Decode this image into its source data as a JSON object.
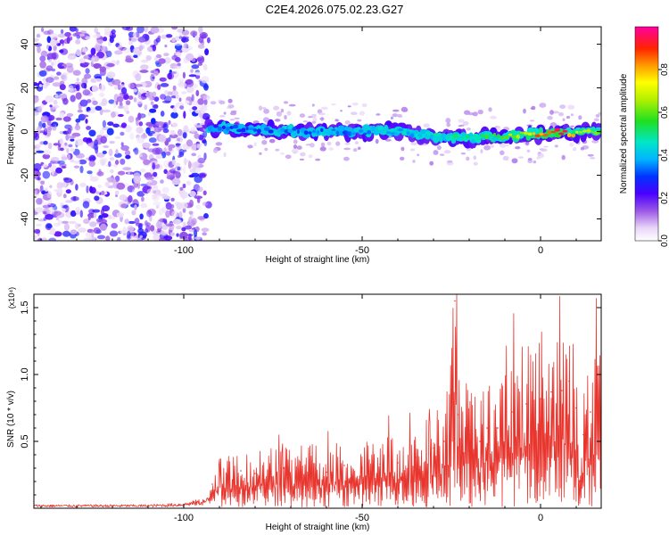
{
  "title": "C2E4.2026.075.02.23.G27",
  "chart_data": [
    {
      "type": "heatmap",
      "title": "C2E4.2026.075.02.23.G27",
      "xlabel": "Height of straight line (km)",
      "ylabel": "Frequency (Hz)",
      "xlim": [
        -142,
        17
      ],
      "ylim": [
        -50,
        48
      ],
      "xticks": [
        -100,
        -50,
        0
      ],
      "yticks": [
        -40,
        -20,
        0,
        20,
        40
      ],
      "colorbar": {
        "label": "Normalized spectral amplitude",
        "range": [
          0.0,
          1.0
        ],
        "ticks": [
          0.0,
          0.2,
          0.4,
          0.6,
          0.8
        ],
        "tick_labels": [
          "0.0",
          "0.2",
          "0.4",
          "0.6",
          "0.8"
        ]
      },
      "noise_region": {
        "x_range": [
          -142,
          -93
        ],
        "y_range": [
          -50,
          48
        ],
        "amplitude_range": [
          0.0,
          0.25
        ]
      },
      "signal_band": [
        {
          "x": -93,
          "freq": 2,
          "amplitude": 0.25
        },
        {
          "x": -80,
          "freq": 1,
          "amplitude": 0.3
        },
        {
          "x": -65,
          "freq": 0,
          "amplitude": 0.3
        },
        {
          "x": -50,
          "freq": 0,
          "amplitude": 0.35
        },
        {
          "x": -40,
          "freq": 0,
          "amplitude": 0.4
        },
        {
          "x": -30,
          "freq": -2,
          "amplitude": 0.4
        },
        {
          "x": -20,
          "freq": -3,
          "amplitude": 0.45
        },
        {
          "x": -10,
          "freq": -2,
          "amplitude": 0.55
        },
        {
          "x": 0,
          "freq": -1,
          "amplitude": 0.8
        },
        {
          "x": 5,
          "freq": 0,
          "amplitude": 0.95
        },
        {
          "x": 10,
          "freq": -1,
          "amplitude": 0.7
        },
        {
          "x": 17,
          "freq": 0,
          "amplitude": 0.5
        }
      ]
    },
    {
      "type": "line",
      "xlabel": "Height of straight line (km)",
      "ylabel": "SNR (10 * v/v)",
      "scale_label": "(x10⁴)",
      "xlim": [
        -142,
        17
      ],
      "ylim": [
        0,
        1.6
      ],
      "xticks": [
        -100,
        -50,
        0
      ],
      "yticks": [
        0.5,
        1.0,
        1.5
      ],
      "series": [
        {
          "name": "SNR",
          "color": "#e8352e",
          "x": [
            -142,
            -130,
            -120,
            -110,
            -100,
            -93,
            -92,
            -88,
            -84,
            -80,
            -76,
            -72,
            -68,
            -64,
            -60,
            -55,
            -50,
            -45,
            -40,
            -35,
            -30,
            -27,
            -25,
            -24,
            -23,
            -20,
            -17,
            -15,
            -12,
            -8,
            -4,
            0,
            3,
            6,
            8,
            10,
            11,
            12,
            14,
            17
          ],
          "y": [
            0.02,
            0.02,
            0.02,
            0.02,
            0.03,
            0.06,
            0.18,
            0.25,
            0.28,
            0.26,
            0.28,
            0.3,
            0.25,
            0.3,
            0.27,
            0.32,
            0.3,
            0.33,
            0.34,
            0.38,
            0.45,
            0.5,
            0.7,
            1.55,
            0.7,
            0.55,
            0.5,
            0.6,
            0.6,
            0.72,
            0.78,
            0.82,
            0.87,
            0.88,
            0.95,
            0.75,
            0.2,
            0.55,
            0.72,
            0.8
          ]
        }
      ]
    }
  ]
}
